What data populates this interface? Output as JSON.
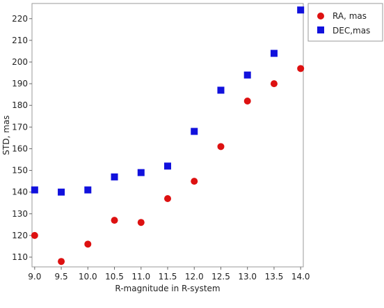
{
  "chart_data": {
    "type": "scatter",
    "xlabel": "R-magnitude in R-system",
    "ylabel": "STD, mas",
    "xlim": [
      8.95,
      14.05
    ],
    "ylim": [
      105.5,
      227
    ],
    "x_ticks": [
      "9.0",
      "9.5",
      "10.0",
      "10.5",
      "11.0",
      "11.5",
      "12.0",
      "12.5",
      "13.0",
      "13.5",
      "14.0"
    ],
    "y_ticks": [
      "110",
      "120",
      "130",
      "140",
      "150",
      "160",
      "170",
      "180",
      "190",
      "200",
      "210",
      "220"
    ],
    "grid": false,
    "legend_position": "top-right-outside",
    "series": [
      {
        "name": "RA, mas",
        "marker": "circle",
        "color": "#dd1111",
        "x": [
          9.0,
          9.5,
          10.0,
          10.5,
          11.0,
          11.5,
          12.0,
          12.5,
          13.0,
          13.5,
          14.0
        ],
        "y": [
          120,
          108,
          116,
          127,
          126,
          137,
          145,
          161,
          182,
          190,
          197
        ]
      },
      {
        "name": "DEC,mas",
        "marker": "square",
        "color": "#1111dd",
        "x": [
          9.0,
          9.5,
          10.0,
          10.5,
          11.0,
          11.5,
          12.0,
          12.5,
          13.0,
          13.5,
          14.0
        ],
        "y": [
          141,
          140,
          141,
          147,
          149,
          152,
          168,
          187,
          194,
          204,
          224
        ]
      }
    ]
  }
}
